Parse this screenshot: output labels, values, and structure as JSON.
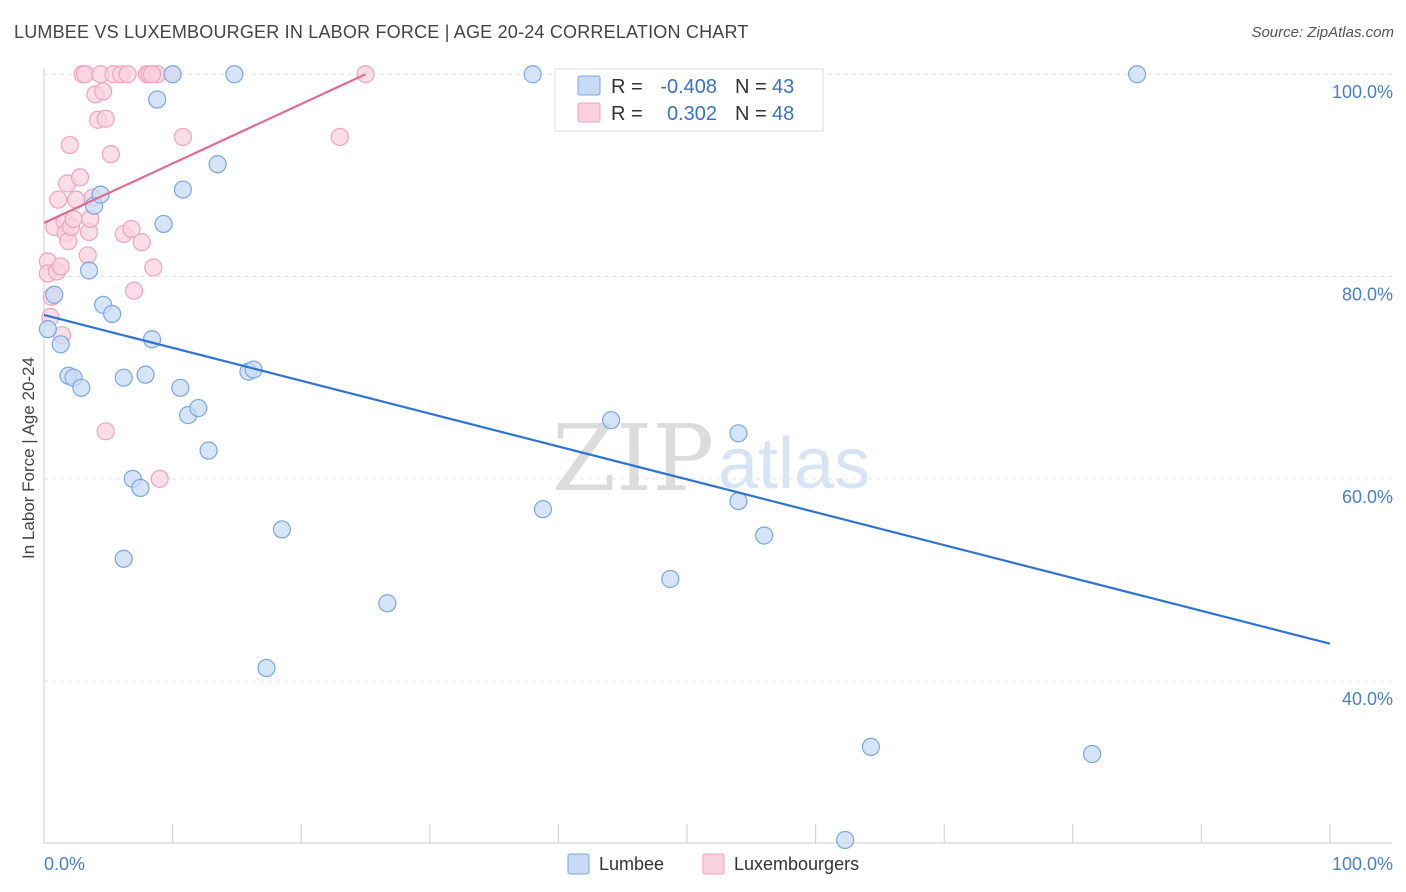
{
  "title": "LUMBEE VS LUXEMBOURGER IN LABOR FORCE | AGE 20-24 CORRELATION CHART",
  "source": "Source: ZipAtlas.com",
  "watermark": {
    "zip": "ZIP",
    "atlas": "atlas"
  },
  "chart_data": {
    "type": "scatter",
    "ylabel": "In Labor Force | Age 20-24",
    "xlim": [
      0,
      100
    ],
    "ylim": [
      24,
      102
    ],
    "y_ticks": [
      {
        "value": 100,
        "label": "100.0%"
      },
      {
        "value": 80,
        "label": "80.0%"
      },
      {
        "value": 60,
        "label": "60.0%"
      },
      {
        "value": 40,
        "label": "40.0%"
      }
    ],
    "x_tick_labels": [
      {
        "value": 0,
        "label": "0.0%"
      },
      {
        "value": 100,
        "label": "100.0%"
      }
    ],
    "x_minor_ticks": [
      0,
      10,
      20,
      30,
      40,
      50,
      60,
      70,
      80,
      90,
      100
    ],
    "grid": true,
    "legend": {
      "placement": "top-center",
      "rows": [
        {
          "r_label": "R =",
          "r_value": "-0.408",
          "n_label": "N =",
          "n_value": "43"
        },
        {
          "r_label": "R =",
          "r_value": "0.302",
          "n_label": "N =",
          "n_value": "48"
        }
      ]
    },
    "series": [
      {
        "name": "Lumbee",
        "color": "#7aa7e0",
        "fill": "#c8dbf5",
        "line_color": "#2f74d0",
        "trend": {
          "x": [
            0,
            100
          ],
          "y": [
            76.2,
            43.7
          ]
        },
        "points": [
          [
            0.3,
            74.8
          ],
          [
            0.8,
            78.2
          ],
          [
            1.3,
            73.3
          ],
          [
            1.9,
            70.2
          ],
          [
            2.3,
            70.0
          ],
          [
            2.9,
            69.0
          ],
          [
            3.5,
            80.6
          ],
          [
            3.9,
            87.0
          ],
          [
            4.4,
            88.1
          ],
          [
            4.6,
            77.2
          ],
          [
            5.3,
            76.3
          ],
          [
            6.2,
            52.1
          ],
          [
            6.2,
            70.0
          ],
          [
            6.9,
            60.0
          ],
          [
            7.5,
            59.1
          ],
          [
            7.9,
            70.3
          ],
          [
            8.4,
            73.8
          ],
          [
            8.8,
            97.5
          ],
          [
            9.3,
            85.2
          ],
          [
            10.0,
            100.0
          ],
          [
            10.6,
            69.0
          ],
          [
            10.8,
            88.6
          ],
          [
            11.2,
            66.3
          ],
          [
            12.0,
            67.0
          ],
          [
            12.8,
            62.8
          ],
          [
            13.5,
            91.1
          ],
          [
            14.8,
            100.0
          ],
          [
            15.9,
            70.6
          ],
          [
            16.3,
            70.8
          ],
          [
            17.3,
            41.3
          ],
          [
            18.5,
            55.0
          ],
          [
            26.7,
            47.7
          ],
          [
            38.0,
            100.0
          ],
          [
            38.8,
            57.0
          ],
          [
            44.1,
            65.8
          ],
          [
            48.7,
            50.1
          ],
          [
            54.0,
            64.5
          ],
          [
            54.0,
            57.8
          ],
          [
            56.0,
            54.4
          ],
          [
            64.3,
            33.5
          ],
          [
            62.3,
            24.3
          ],
          [
            81.5,
            32.8
          ],
          [
            85.0,
            100.0
          ]
        ]
      },
      {
        "name": "Luxembourgers",
        "color": "#f0a3bd",
        "fill": "#fad2df",
        "line_color": "#e26b93",
        "trend": {
          "x": [
            0,
            25
          ],
          "y": [
            85.3,
            100.0
          ]
        },
        "points": [
          [
            0.3,
            81.5
          ],
          [
            0.3,
            80.3
          ],
          [
            0.5,
            76.0
          ],
          [
            0.6,
            78.0
          ],
          [
            0.8,
            84.9
          ],
          [
            1.0,
            80.5
          ],
          [
            1.1,
            87.6
          ],
          [
            1.3,
            81.0
          ],
          [
            1.4,
            74.2
          ],
          [
            1.6,
            85.4
          ],
          [
            1.7,
            84.3
          ],
          [
            1.8,
            89.2
          ],
          [
            1.9,
            83.5
          ],
          [
            2.0,
            93.0
          ],
          [
            2.1,
            84.9
          ],
          [
            2.3,
            85.7
          ],
          [
            2.5,
            87.6
          ],
          [
            2.8,
            89.8
          ],
          [
            3.0,
            100.0
          ],
          [
            3.2,
            100.0
          ],
          [
            3.4,
            82.1
          ],
          [
            3.5,
            84.4
          ],
          [
            3.6,
            85.7
          ],
          [
            3.8,
            87.8
          ],
          [
            4.0,
            98.0
          ],
          [
            4.2,
            95.5
          ],
          [
            4.4,
            100.0
          ],
          [
            4.6,
            98.3
          ],
          [
            4.8,
            95.6
          ],
          [
            4.8,
            64.7
          ],
          [
            5.2,
            92.1
          ],
          [
            5.4,
            100.0
          ],
          [
            6.0,
            100.0
          ],
          [
            6.2,
            84.2
          ],
          [
            6.5,
            100.0
          ],
          [
            6.8,
            84.7
          ],
          [
            7.0,
            78.6
          ],
          [
            7.6,
            83.4
          ],
          [
            8.0,
            100.0
          ],
          [
            8.2,
            100.0
          ],
          [
            8.5,
            80.9
          ],
          [
            8.8,
            100.0
          ],
          [
            9.0,
            60.0
          ],
          [
            10.0,
            100.0
          ],
          [
            10.8,
            93.8
          ],
          [
            23.0,
            93.8
          ],
          [
            25.0,
            100.0
          ],
          [
            8.4,
            100.0
          ]
        ]
      }
    ]
  }
}
